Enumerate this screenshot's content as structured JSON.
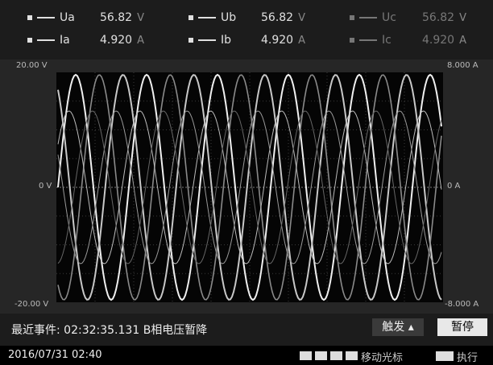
{
  "legend": [
    {
      "name": "Ua",
      "value": "56.82",
      "unit": "V"
    },
    {
      "name": "Ub",
      "value": "56.82",
      "unit": "V"
    },
    {
      "name": "Uc",
      "value": "56.82",
      "unit": "V"
    },
    {
      "name": "Ia",
      "value": "4.920",
      "unit": "A"
    },
    {
      "name": "Ib",
      "value": "4.920",
      "unit": "A"
    },
    {
      "name": "Ic",
      "value": "4.920",
      "unit": "A"
    }
  ],
  "axes": {
    "left": {
      "top": "20.00 V",
      "zero": "0 V",
      "bottom": "-20.00 V"
    },
    "right": {
      "top": "8.000 A",
      "zero": "0 A",
      "bottom": "-8.000 A"
    }
  },
  "event": {
    "label": "最近事件:",
    "time": "02:32:35.131",
    "text": "B相电压暂降"
  },
  "buttons": {
    "trigger": "触发",
    "pause": "暂停"
  },
  "status": {
    "datetime": "2016/07/31 02:40",
    "cursor": "移动光标",
    "execute": "执行"
  }
}
